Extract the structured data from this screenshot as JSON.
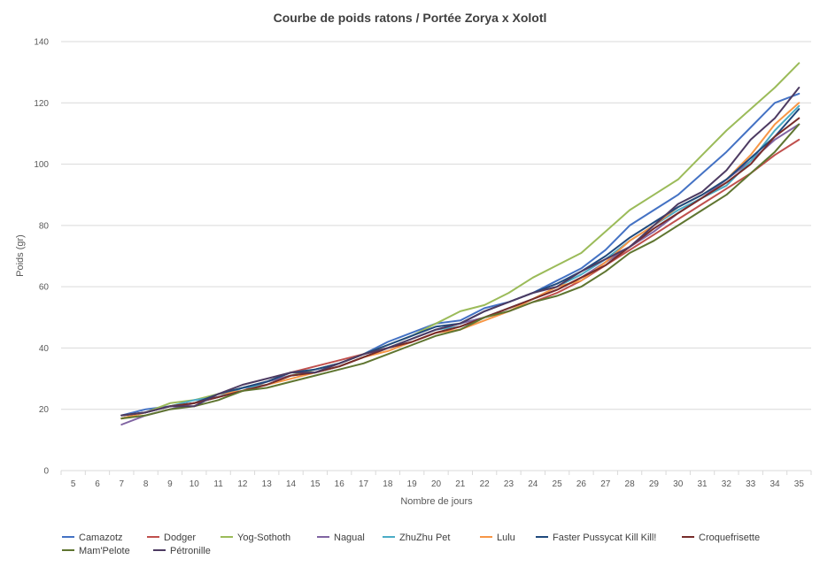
{
  "chart_data": {
    "type": "line",
    "title": "Courbe de poids ratons / Portée Zorya x Xolotl",
    "xlabel": "Nombre de jours",
    "ylabel": "Poids (gr)",
    "ylim": [
      0,
      140
    ],
    "yticks": [
      0,
      20,
      40,
      60,
      80,
      100,
      120,
      140
    ],
    "grid": true,
    "legend_position": "bottom",
    "x": [
      5,
      6,
      7,
      8,
      9,
      10,
      11,
      12,
      13,
      14,
      15,
      16,
      17,
      18,
      19,
      20,
      21,
      22,
      23,
      24,
      25,
      26,
      27,
      28,
      29,
      30,
      31,
      32,
      33,
      34,
      35
    ],
    "series": [
      {
        "name": "Camazotz",
        "color": "#4472C4",
        "values": [
          null,
          null,
          18,
          20,
          21,
          22,
          25,
          27,
          29,
          31,
          33,
          35,
          38,
          42,
          45,
          48,
          49,
          53,
          55,
          58,
          62,
          66,
          72,
          80,
          85,
          90,
          97,
          104,
          112,
          120,
          123
        ]
      },
      {
        "name": "Dodger",
        "color": "#C0504D",
        "values": [
          null,
          null,
          17,
          19,
          21,
          22,
          24,
          26,
          29,
          32,
          34,
          36,
          38,
          40,
          42,
          45,
          47,
          50,
          52,
          55,
          58,
          62,
          67,
          72,
          77,
          82,
          87,
          92,
          97,
          103,
          108
        ]
      },
      {
        "name": "Yog-Sothoth",
        "color": "#9BBB59",
        "values": [
          null,
          null,
          17,
          19,
          22,
          23,
          25,
          27,
          29,
          31,
          33,
          35,
          38,
          41,
          44,
          48,
          52,
          54,
          58,
          63,
          67,
          71,
          78,
          85,
          90,
          95,
          103,
          111,
          118,
          125,
          133
        ]
      },
      {
        "name": "Nagual",
        "color": "#8064A2",
        "values": [
          null,
          null,
          15,
          18,
          20,
          22,
          24,
          27,
          29,
          31,
          32,
          34,
          37,
          40,
          43,
          46,
          48,
          50,
          53,
          56,
          59,
          63,
          68,
          73,
          78,
          84,
          89,
          95,
          101,
          108,
          113
        ]
      },
      {
        "name": "ZhuZhu Pet",
        "color": "#4BACC6",
        "values": [
          null,
          null,
          18,
          19,
          21,
          23,
          24,
          27,
          28,
          31,
          32,
          34,
          37,
          40,
          43,
          46,
          47,
          50,
          53,
          56,
          60,
          64,
          69,
          75,
          80,
          85,
          89,
          93,
          101,
          111,
          119
        ]
      },
      {
        "name": "Lulu",
        "color": "#F79646",
        "values": [
          null,
          null,
          17,
          19,
          21,
          22,
          25,
          26,
          28,
          30,
          32,
          34,
          37,
          39,
          42,
          45,
          46,
          49,
          52,
          56,
          60,
          62,
          68,
          75,
          80,
          86,
          90,
          95,
          103,
          113,
          120
        ]
      },
      {
        "name": "Faster Pussycat Kill Kill!",
        "color": "#1F497D",
        "values": [
          null,
          null,
          18,
          19,
          21,
          22,
          25,
          27,
          29,
          32,
          33,
          35,
          38,
          41,
          44,
          47,
          48,
          52,
          55,
          58,
          61,
          65,
          70,
          76,
          81,
          86,
          90,
          95,
          102,
          109,
          118
        ]
      },
      {
        "name": "Croquefrisette",
        "color": "#772C2A",
        "values": [
          null,
          null,
          18,
          19,
          21,
          22,
          24,
          26,
          28,
          31,
          32,
          34,
          37,
          40,
          42,
          45,
          47,
          50,
          53,
          56,
          59,
          63,
          67,
          73,
          79,
          84,
          89,
          94,
          100,
          109,
          115
        ]
      },
      {
        "name": "Mam'Pelote",
        "color": "#5F7530",
        "values": [
          null,
          null,
          17,
          18,
          20,
          21,
          23,
          26,
          27,
          29,
          31,
          33,
          35,
          38,
          41,
          44,
          46,
          50,
          52,
          55,
          57,
          60,
          65,
          71,
          75,
          80,
          85,
          90,
          97,
          104,
          113
        ]
      },
      {
        "name": "Pétronille",
        "color": "#4D3B62",
        "values": [
          null,
          null,
          18,
          19,
          21,
          21,
          25,
          28,
          30,
          32,
          32,
          35,
          38,
          40,
          43,
          46,
          48,
          52,
          55,
          58,
          60,
          65,
          69,
          73,
          80,
          87,
          91,
          98,
          108,
          115,
          125
        ]
      }
    ]
  }
}
